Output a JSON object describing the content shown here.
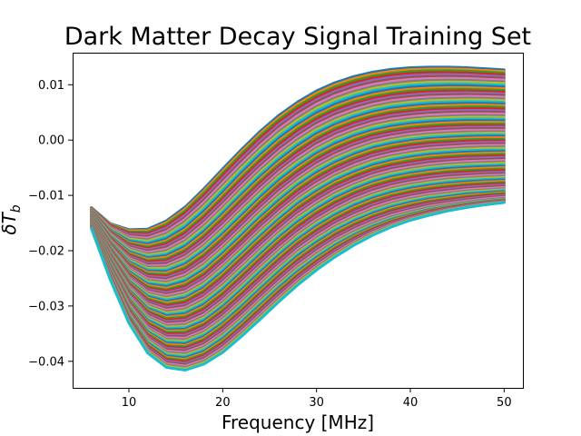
{
  "chart_data": {
    "type": "line",
    "title": "Dark Matter Decay Signal Training Set",
    "xlabel": "Frequency [MHz]",
    "ylabel": "δT_b",
    "ylabel_main": "δT",
    "ylabel_sub": "b",
    "xlim": [
      4,
      52
    ],
    "ylim": [
      -0.0448,
      0.0158
    ],
    "x_ticks": [
      10,
      20,
      30,
      40,
      50
    ],
    "x_tick_labels": [
      "10",
      "20",
      "30",
      "40",
      "50"
    ],
    "y_ticks": [
      -0.04,
      -0.03,
      -0.02,
      -0.01,
      0.0,
      0.01
    ],
    "y_tick_labels": [
      "−0.04",
      "−0.03",
      "−0.02",
      "−0.01",
      "0.00",
      "0.01"
    ],
    "grid": false,
    "x": [
      6,
      8,
      10,
      12,
      14,
      16,
      18,
      20,
      22,
      24,
      26,
      28,
      30,
      32,
      34,
      36,
      38,
      40,
      42,
      44,
      46,
      48,
      50
    ],
    "series": [
      {
        "values": [
          -0.0122,
          -0.0151,
          -0.0162,
          -0.0161,
          -0.0146,
          -0.0121,
          -0.0088,
          -0.0052,
          -0.0017,
          0.0016,
          0.0045,
          0.0069,
          0.0089,
          0.0104,
          0.0115,
          0.0123,
          0.0128,
          0.0131,
          0.0132,
          0.0132,
          0.0131,
          0.0129,
          0.0127
        ]
      },
      {
        "values": [
          -0.0127,
          -0.0164,
          -0.0185,
          -0.0191,
          -0.0182,
          -0.0162,
          -0.0133,
          -0.0099,
          -0.0064,
          -0.0031,
          -0.0001,
          0.0024,
          0.0045,
          0.0061,
          0.0073,
          0.0082,
          0.0088,
          0.0092,
          0.0094,
          0.0095,
          0.0095,
          0.0094,
          0.0093
        ]
      },
      {
        "values": [
          -0.0131,
          -0.0176,
          -0.0206,
          -0.0218,
          -0.0215,
          -0.0199,
          -0.0173,
          -0.0141,
          -0.0107,
          -0.0074,
          -0.0044,
          -0.0018,
          0.0004,
          0.0021,
          0.0034,
          0.0044,
          0.0051,
          0.0055,
          0.0058,
          0.0059,
          0.006,
          0.006,
          0.0059
        ]
      },
      {
        "values": [
          -0.0136,
          -0.0188,
          -0.0226,
          -0.0244,
          -0.0246,
          -0.0234,
          -0.0211,
          -0.0181,
          -0.0148,
          -0.0115,
          -0.0084,
          -0.0058,
          -0.0035,
          -0.0017,
          -0.0003,
          0.0008,
          0.0015,
          0.002,
          0.0023,
          0.0025,
          0.0026,
          0.0026,
          0.0026
        ]
      },
      {
        "values": [
          -0.014,
          -0.0199,
          -0.0245,
          -0.027,
          -0.0276,
          -0.0268,
          -0.0248,
          -0.0219,
          -0.0187,
          -0.0154,
          -0.0124,
          -0.0096,
          -0.0073,
          -0.0054,
          -0.0039,
          -0.0027,
          -0.0019,
          -0.0013,
          -0.0009,
          -0.0007,
          -0.0005,
          -0.0004,
          -0.0004
        ]
      },
      {
        "values": [
          -0.0144,
          -0.021,
          -0.0263,
          -0.0294,
          -0.0305,
          -0.03,
          -0.0282,
          -0.0255,
          -0.0223,
          -0.0191,
          -0.016,
          -0.0132,
          -0.0109,
          -0.0089,
          -0.0074,
          -0.0061,
          -0.0052,
          -0.0046,
          -0.0041,
          -0.0038,
          -0.0036,
          -0.0035,
          -0.0034
        ]
      },
      {
        "values": [
          -0.0148,
          -0.0221,
          -0.0281,
          -0.0318,
          -0.0333,
          -0.0331,
          -0.0316,
          -0.029,
          -0.0259,
          -0.0227,
          -0.0196,
          -0.0168,
          -0.0144,
          -0.0124,
          -0.0107,
          -0.0094,
          -0.0084,
          -0.0077,
          -0.0072,
          -0.0068,
          -0.0066,
          -0.0064,
          -0.0063
        ]
      },
      {
        "values": [
          -0.0152,
          -0.0232,
          -0.0298,
          -0.0341,
          -0.036,
          -0.0361,
          -0.0347,
          -0.0323,
          -0.0293,
          -0.0261,
          -0.023,
          -0.0201,
          -0.0177,
          -0.0156,
          -0.0139,
          -0.0125,
          -0.0114,
          -0.0106,
          -0.01,
          -0.0096,
          -0.0092,
          -0.009,
          -0.0088
        ]
      },
      {
        "values": [
          -0.0156,
          -0.0242,
          -0.0315,
          -0.0363,
          -0.0386,
          -0.0389,
          -0.0377,
          -0.0354,
          -0.0325,
          -0.0293,
          -0.0262,
          -0.0233,
          -0.0208,
          -0.0186,
          -0.0168,
          -0.0153,
          -0.0141,
          -0.0132,
          -0.0124,
          -0.0119,
          -0.0114,
          -0.011,
          -0.0107
        ]
      },
      {
        "values": [
          -0.016,
          -0.0252,
          -0.0331,
          -0.0385,
          -0.0411,
          -0.0416,
          -0.0405,
          -0.0384,
          -0.0355,
          -0.0324,
          -0.0292,
          -0.0262,
          -0.0235,
          -0.0211,
          -0.019,
          -0.0172,
          -0.0157,
          -0.0145,
          -0.0136,
          -0.0128,
          -0.0122,
          -0.0117,
          -0.0113
        ]
      }
    ]
  }
}
